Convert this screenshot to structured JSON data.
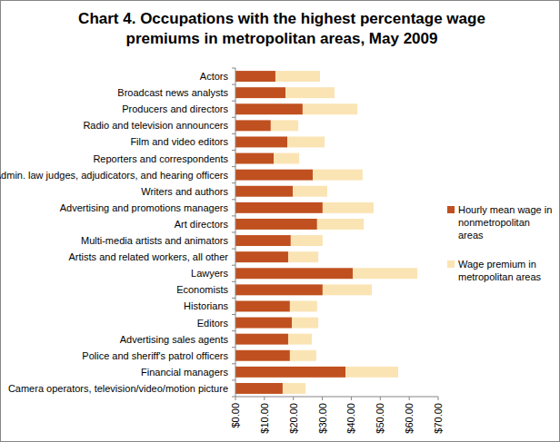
{
  "chart_data": {
    "type": "bar",
    "orientation": "horizontal",
    "stacked": true,
    "grid": false,
    "legend": "right",
    "title": "Chart 4. Occupations with the highest percentage wage premiums in metropolitan areas, May 2009",
    "categories": [
      "Actors",
      "Broadcast news analysts",
      "Producers and directors",
      "Radio and television announcers",
      "Film and video editors",
      "Reporters and correspondents",
      "Admin. law judges, adjudicators, and hearing officers",
      "Writers and authors",
      "Advertising and promotions managers",
      "Art directors",
      "Multi-media artists and animators",
      "Artists and related workers, all other",
      "Lawyers",
      "Economists",
      "Historians",
      "Editors",
      "Advertising sales agents",
      "Police and sheriff's patrol officers",
      "Financial managers",
      "Camera operators, television/video/motion picture"
    ],
    "series": [
      {
        "name": "Hourly mean wage in nonmetropolitan areas",
        "color": "#c0501f",
        "values": [
          13.8,
          17.3,
          23.2,
          12.2,
          17.9,
          13.2,
          26.7,
          19.8,
          30.1,
          28.2,
          19.1,
          18.2,
          40.5,
          30.1,
          18.8,
          19.5,
          18.2,
          18.8,
          38.0,
          16.3
        ]
      },
      {
        "name": "Wage premium in metropolitan areas",
        "color": "#fbe4b4",
        "values": [
          15.4,
          16.9,
          18.9,
          9.5,
          12.9,
          8.8,
          17.2,
          11.9,
          17.6,
          16.1,
          11.0,
          10.4,
          22.3,
          17.0,
          9.4,
          9.1,
          8.2,
          9.1,
          18.2,
          7.9
        ]
      }
    ],
    "xlim": [
      0,
      70
    ],
    "xticks": [
      {
        "value": 0,
        "label": "$0.00"
      },
      {
        "value": 10,
        "label": "$10.00"
      },
      {
        "value": 20,
        "label": "$20.00"
      },
      {
        "value": 30,
        "label": "$30.00"
      },
      {
        "value": 40,
        "label": "$40.00"
      },
      {
        "value": 50,
        "label": "$50.00"
      },
      {
        "value": 60,
        "label": "$60.00"
      },
      {
        "value": 70,
        "label": "$70.00"
      }
    ]
  }
}
